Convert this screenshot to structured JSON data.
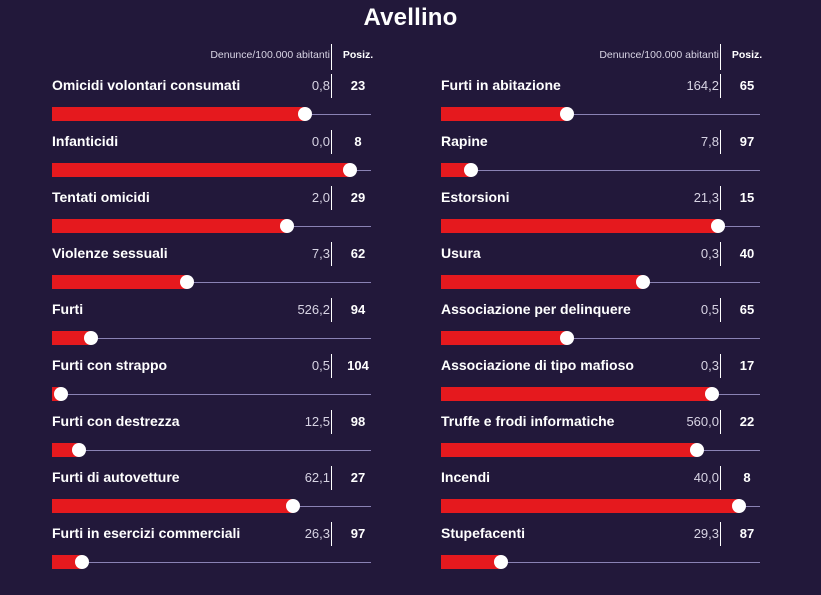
{
  "title": "Avellino",
  "header": {
    "metric_label": "Denunce/100.000 abitanti",
    "position_label": "Posiz."
  },
  "colors": {
    "background": "#22183a",
    "bar": "#e5191e",
    "track": "#8a82b4",
    "knob": "#ffffff"
  },
  "chart_data": {
    "type": "bar",
    "title": "Avellino",
    "value_label": "Denunce/100.000 abitanti",
    "rank_label": "Posiz.",
    "rank_max": 106,
    "columns": [
      [
        {
          "label": "Omicidi volontari consumati",
          "value": "0,8",
          "rank": 23
        },
        {
          "label": "Infanticidi",
          "value": "0,0",
          "rank": 8
        },
        {
          "label": "Tentati omicidi",
          "value": "2,0",
          "rank": 29
        },
        {
          "label": "Violenze sessuali",
          "value": "7,3",
          "rank": 62
        },
        {
          "label": "Furti",
          "value": "526,2",
          "rank": 94
        },
        {
          "label": "Furti con strappo",
          "value": "0,5",
          "rank": 104
        },
        {
          "label": "Furti con destrezza",
          "value": "12,5",
          "rank": 98
        },
        {
          "label": "Furti di autovetture",
          "value": "62,1",
          "rank": 27
        },
        {
          "label": "Furti in esercizi commerciali",
          "value": "26,3",
          "rank": 97
        }
      ],
      [
        {
          "label": "Furti in abitazione",
          "value": "164,2",
          "rank": 65
        },
        {
          "label": "Rapine",
          "value": "7,8",
          "rank": 97
        },
        {
          "label": "Estorsioni",
          "value": "21,3",
          "rank": 15
        },
        {
          "label": "Usura",
          "value": "0,3",
          "rank": 40
        },
        {
          "label": "Associazione per delinquere",
          "value": "0,5",
          "rank": 65
        },
        {
          "label": "Associazione di tipo mafioso",
          "value": "0,3",
          "rank": 17
        },
        {
          "label": "Truffe e frodi informatiche",
          "value": "560,0",
          "rank": 22
        },
        {
          "label": "Incendi",
          "value": "40,0",
          "rank": 8
        },
        {
          "label": "Stupefacenti",
          "value": "29,3",
          "rank": 87
        }
      ]
    ]
  }
}
